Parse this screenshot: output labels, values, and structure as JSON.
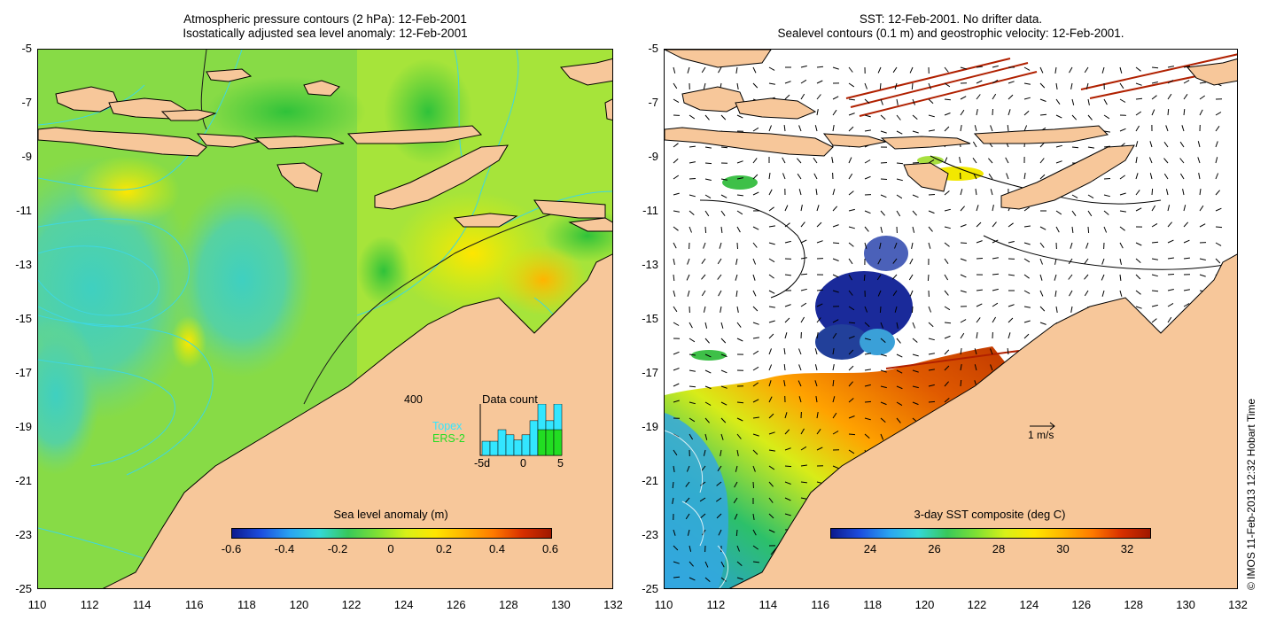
{
  "left_panel": {
    "title_line1": "Atmospheric pressure contours (2 hPa): 12-Feb-2001",
    "title_line2": "Isostatically adjusted sea level anomaly: 12-Feb-2001",
    "colorbar": {
      "title": "Sea level anomaly (m)",
      "ticks": [
        "-0.6",
        "-0.4",
        "-0.2",
        "0",
        "0.2",
        "0.4",
        "0.6"
      ]
    },
    "data_count": {
      "title": "Data count",
      "ymax_label": "400",
      "series": [
        {
          "name": "Topex",
          "color": "#33e6ff"
        },
        {
          "name": "ERS-2",
          "color": "#22dd22"
        }
      ],
      "x_ticks": [
        "-5d",
        "0",
        "5"
      ],
      "topex_values": [
        110,
        110,
        200,
        160,
        120,
        160,
        270,
        400,
        270,
        400
      ],
      "ers_values": [
        0,
        0,
        0,
        0,
        0,
        0,
        0,
        200,
        200,
        200
      ]
    }
  },
  "right_panel": {
    "title_line1": "SST: 12-Feb-2001. No drifter data.",
    "title_line2": "Sealevel contours (0.1 m) and geostrophic velocity: 12-Feb-2001.",
    "colorbar": {
      "title": "3-day SST composite (deg C)",
      "ticks": [
        "24",
        "26",
        "28",
        "30",
        "32"
      ]
    },
    "velocity_scale_label": "1 m/s"
  },
  "axes": {
    "x_ticks": [
      "110",
      "112",
      "114",
      "116",
      "118",
      "120",
      "122",
      "124",
      "126",
      "128",
      "130",
      "132"
    ],
    "y_ticks": [
      "-5",
      "-7",
      "-9",
      "-11",
      "-13",
      "-15",
      "-17",
      "-19",
      "-21",
      "-23",
      "-25"
    ],
    "lon_range": [
      110,
      132
    ],
    "lat_range": [
      -25,
      -5
    ]
  },
  "credit": "© IMOS 11-Feb-2013 12:32 Hobart Time",
  "colors": {
    "land": "#f7c79a",
    "ocean_background": "#ffffff",
    "contour_cyan": "#3fd7e0"
  }
}
